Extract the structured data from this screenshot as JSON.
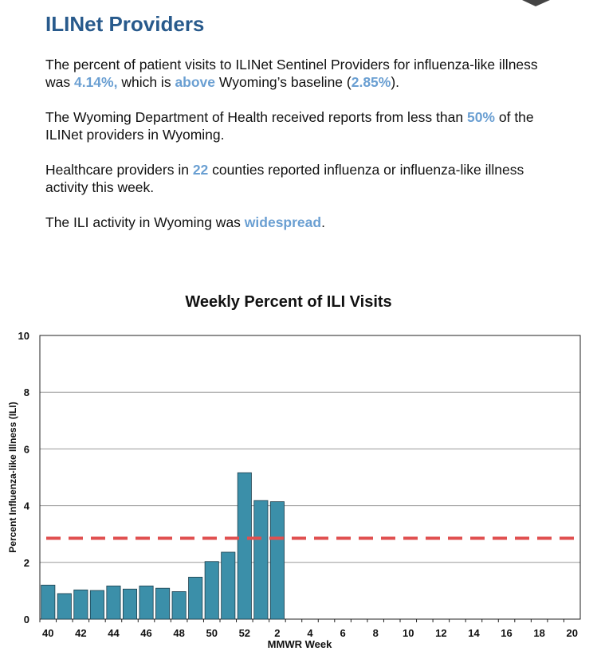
{
  "header": {
    "title": "ILINet Providers"
  },
  "paragraphs": [
    [
      "The percent of patient visits to ILINet Sentinel Providers for influenza-like illness was ",
      {
        "strong": "4.14%,"
      },
      " which is ",
      {
        "strong": "above"
      },
      " Wyoming’s baseline (",
      {
        "strong": "2.85%"
      },
      ")."
    ],
    [
      "The Wyoming Department of Health received reports from less than ",
      {
        "strong": "50%"
      },
      " of the ILINet providers in Wyoming."
    ],
    [
      "Healthcare providers in ",
      {
        "strong": "22"
      },
      " counties reported influenza or influenza-like illness activity this week."
    ],
    [
      "The ILI activity in Wyoming was ",
      {
        "strong": "widespread"
      },
      "."
    ]
  ],
  "chart_data": {
    "type": "bar",
    "title": "Weekly Percent of ILI Visits",
    "x_label": "MMWR Week",
    "y_label": "Percent Influenza-like Illness (ILI)",
    "categories": [
      "40",
      null,
      "42",
      null,
      "44",
      null,
      "46",
      null,
      "48",
      null,
      "50",
      null,
      "52",
      null,
      "2",
      null,
      "4",
      null,
      "6",
      null,
      "8",
      null,
      "10",
      null,
      "12",
      null,
      "14",
      null,
      "16",
      null,
      "18",
      null,
      "20"
    ],
    "values": [
      1.2,
      0.9,
      1.03,
      1.01,
      1.17,
      1.06,
      1.17,
      1.09,
      0.97,
      1.48,
      2.03,
      2.36,
      5.16,
      4.18,
      4.14,
      null,
      null,
      null,
      null,
      null,
      null,
      null,
      null,
      null,
      null,
      null,
      null,
      null,
      null,
      null,
      null,
      null,
      null
    ],
    "color": "#3b8fa9",
    "baseline": 2.85,
    "baseline_color": "#e05050",
    "ylim": [
      0,
      10
    ],
    "yticks": [
      0,
      2,
      4,
      6,
      8,
      10
    ],
    "grid": true
  }
}
